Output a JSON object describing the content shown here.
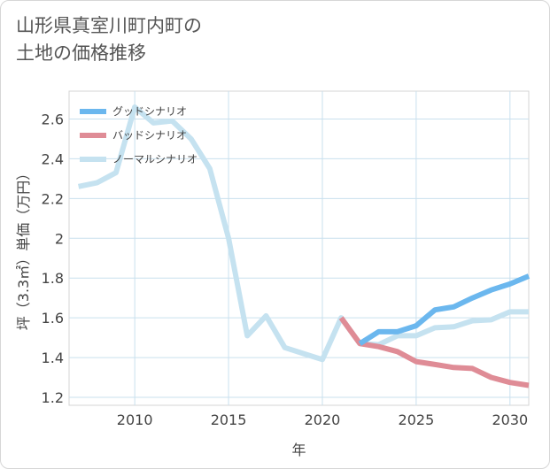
{
  "title_line1": "山形県真室川町内町の",
  "title_line2": "土地の価格推移",
  "chart_data": {
    "type": "line",
    "xlabel": "年",
    "ylabel": "坪（3.3㎡）単価（万円）",
    "xlim": [
      2006.5,
      2031
    ],
    "ylim": [
      1.16,
      2.74
    ],
    "xticks": [
      2010,
      2015,
      2020,
      2025,
      2030
    ],
    "yticks": [
      1.2,
      1.4,
      1.6,
      1.8,
      2,
      2.2,
      2.4,
      2.6
    ],
    "ytick_labels": [
      "1.2",
      "1.4",
      "1.6",
      "1.8",
      "2",
      "2.2",
      "2.4",
      "2.6"
    ],
    "grid": true,
    "legend_position": "top-left",
    "series": [
      {
        "name": "グッドシナリオ",
        "color": "#6bb7ee",
        "width": 6,
        "x": [
          2022,
          2023,
          2024,
          2025,
          2026,
          2027,
          2028,
          2029,
          2030,
          2031
        ],
        "y": [
          1.47,
          1.53,
          1.53,
          1.56,
          1.64,
          1.655,
          1.7,
          1.74,
          1.77,
          1.81
        ]
      },
      {
        "name": "バッドシナリオ",
        "color": "#df8c96",
        "width": 6,
        "x": [
          2021,
          2022,
          2023,
          2024,
          2025,
          2026,
          2027,
          2028,
          2029,
          2030,
          2031
        ],
        "y": [
          1.6,
          1.47,
          1.455,
          1.43,
          1.38,
          1.365,
          1.35,
          1.345,
          1.3,
          1.275,
          1.26
        ]
      },
      {
        "name": "ノーマルシナリオ",
        "color": "#c5e2f0",
        "width": 6,
        "x": [
          2007,
          2008,
          2009,
          2010,
          2011,
          2012,
          2013,
          2014,
          2015,
          2016,
          2017,
          2018,
          2019,
          2020,
          2021,
          2022,
          2023,
          2024,
          2025,
          2026,
          2027,
          2028,
          2029,
          2030,
          2031
        ],
        "y": [
          2.26,
          2.28,
          2.33,
          2.66,
          2.58,
          2.59,
          2.5,
          2.35,
          2.0,
          1.51,
          1.61,
          1.45,
          1.42,
          1.39,
          1.6,
          1.47,
          1.465,
          1.51,
          1.51,
          1.55,
          1.555,
          1.585,
          1.59,
          1.63,
          1.63
        ]
      }
    ]
  }
}
